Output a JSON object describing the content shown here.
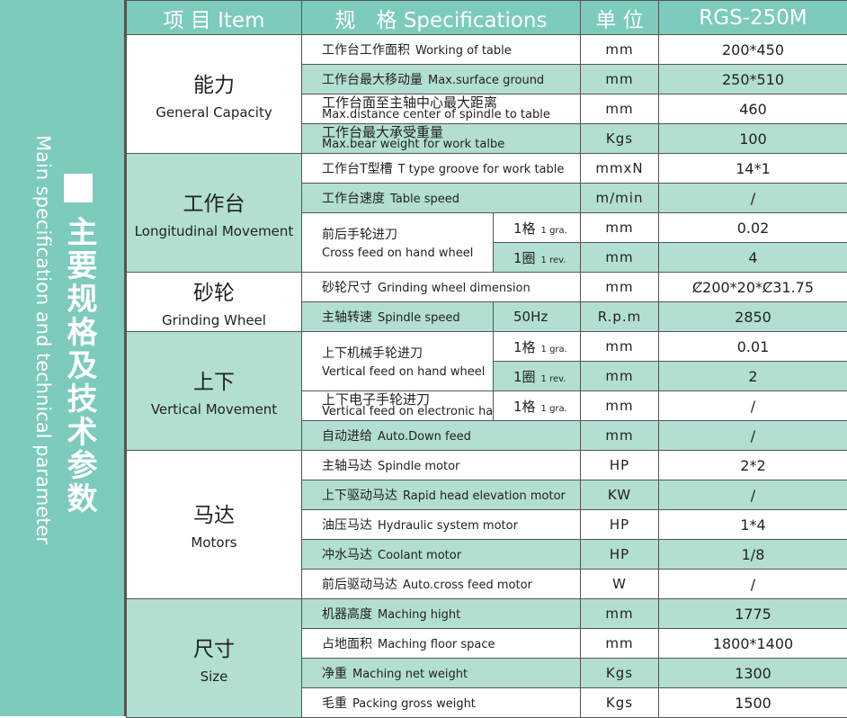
{
  "sidebar": {
    "en": "Main specification and technical parameter",
    "zh": "主要规格及技术参数"
  },
  "header": {
    "item": "项 目 Item",
    "spec": "规　格 Specifications",
    "unit": "单 位",
    "model": "RGS-250M"
  },
  "colors": {
    "teal": "#7ccbbd",
    "light_teal": "#b2ded3"
  },
  "groups": [
    {
      "zh": "能力",
      "en": "General Capacity",
      "items": [
        {
          "zh": "工作台工作面积",
          "en": "Working of table",
          "unit": "mm",
          "value": "200*450"
        },
        {
          "zh": "工作台最大移动量",
          "en": "Max.surface ground",
          "unit": "mm",
          "value": "250*510"
        },
        {
          "zh": "工作台面至主轴中心最大距离",
          "en": "Max.distance  center of spindle to table",
          "unit": "mm",
          "value": "460"
        },
        {
          "zh": "工作台最大承受重量",
          "en": "Max.bear weight for work talbe",
          "unit": "Kgs",
          "value": "100"
        }
      ]
    },
    {
      "zh": "工作台",
      "en": "Longitudinal Movement",
      "items": [
        {
          "zh": "工作台T型槽",
          "en": "T type groove for work table",
          "unit": "mmxN",
          "value": "14*1"
        },
        {
          "zh": "工作台速度",
          "en": "Table speed",
          "unit": "m/min",
          "value": "/"
        },
        {
          "zh": "前后手轮进刀",
          "en": "Cross feed on hand wheel",
          "subs": [
            {
              "label": "1格",
              "small": "1 gra.",
              "unit": "mm",
              "value": "0.02"
            },
            {
              "label": "1圈",
              "small": "1 rev.",
              "unit": "mm",
              "value": "4"
            }
          ]
        }
      ]
    },
    {
      "zh": "砂轮",
      "en": "Grinding Wheel",
      "items": [
        {
          "zh": "砂轮尺寸",
          "en": "Grinding wheel dimension",
          "unit": "mm",
          "value": "Ȼ200*20*Ȼ31.75"
        },
        {
          "zh": "主轴转速",
          "en": "Spindle speed",
          "subs": [
            {
              "label": "50Hz",
              "small": "",
              "unit": "R.p.m",
              "value": "2850"
            }
          ]
        }
      ]
    },
    {
      "zh": "上下",
      "en": "Vertical Movement",
      "items": [
        {
          "zh": "上下机械手轮进刀",
          "en": "Vertical feed on hand wheel",
          "subs": [
            {
              "label": "1格",
              "small": "1 gra.",
              "unit": "mm",
              "value": "0.01"
            },
            {
              "label": "1圈",
              "small": "1 rev.",
              "unit": "mm",
              "value": "2"
            }
          ]
        },
        {
          "zh": "上下电子手轮进刀",
          "en": "Vertical feed on electronic hand",
          "subs": [
            {
              "label": "1格",
              "small": "1 gra.",
              "unit": "mm",
              "value": "/"
            }
          ]
        },
        {
          "zh": "自动进给",
          "en": "Auto.Down feed",
          "unit": "mm",
          "value": "/"
        }
      ]
    },
    {
      "zh": "马达",
      "en": "Motors",
      "items": [
        {
          "zh": "主轴马达",
          "en": "Spindle motor",
          "unit": "HP",
          "value": "2*2"
        },
        {
          "zh": "上下驱动马达",
          "en": "Rapid head elevation motor",
          "unit": "KW",
          "value": "/"
        },
        {
          "zh": "油压马达",
          "en": "Hydraulic system motor",
          "unit": "HP",
          "value": "1*4"
        },
        {
          "zh": "冲水马达",
          "en": "Coolant motor",
          "unit": "HP",
          "value": "1/8"
        },
        {
          "zh": "前后驱动马达",
          "en": "Auto.cross feed motor",
          "unit": "W",
          "value": "/"
        }
      ]
    },
    {
      "zh": "尺寸",
      "en": "Size",
      "items": [
        {
          "zh": "机器高度",
          "en": "Maching hight",
          "unit": "mm",
          "value": "1775"
        },
        {
          "zh": "占地面积",
          "en": "Maching floor space",
          "unit": "mm",
          "value": "1800*1400"
        },
        {
          "zh": "净重",
          "en": "Maching net weight",
          "unit": "Kgs",
          "value": "1300"
        },
        {
          "zh": "毛重",
          "en": "Packing gross weight",
          "unit": "Kgs",
          "value": "1500"
        }
      ]
    }
  ]
}
